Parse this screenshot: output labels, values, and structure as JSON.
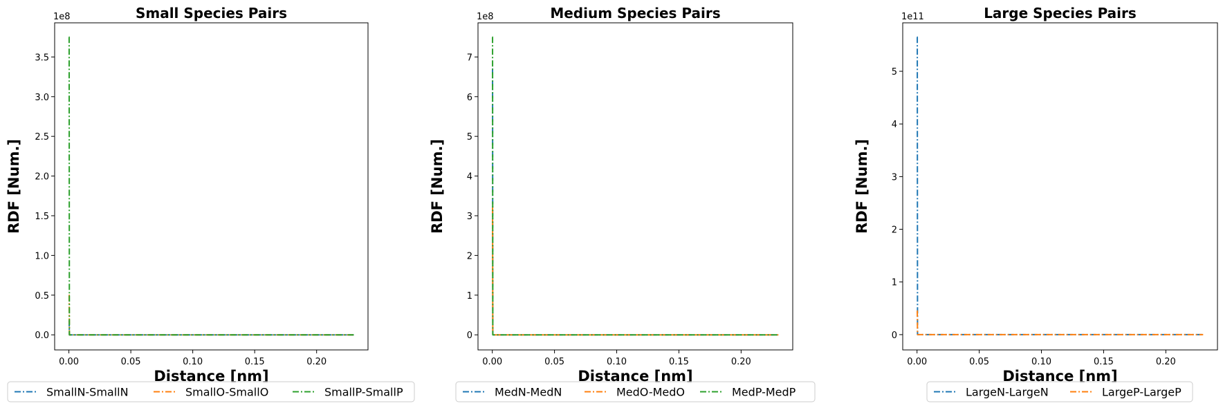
{
  "chart_data": [
    {
      "type": "line",
      "title": "Small Species Pairs",
      "xlabel": "Distance [nm]",
      "ylabel": "RDF [Num.]",
      "offset_text": "1e8",
      "xlim": [
        -0.0115,
        0.2415
      ],
      "ylim": [
        -0.19,
        3.93
      ],
      "xticks": [
        0.0,
        0.05,
        0.1,
        0.15,
        0.2
      ],
      "xtick_labels": [
        "0.00",
        "0.05",
        "0.10",
        "0.15",
        "0.20"
      ],
      "yticks": [
        0.0,
        0.5,
        1.0,
        1.5,
        2.0,
        2.5,
        3.0,
        3.5
      ],
      "ytick_labels": [
        "0.0",
        "0.5",
        "1.0",
        "1.5",
        "2.0",
        "2.5",
        "3.0",
        "3.5"
      ],
      "legend": "below",
      "series": [
        {
          "name": "SmallN-SmallN",
          "color": "#1f77b4",
          "x": [
            0.0,
            0.0002,
            0.0004,
            0.23
          ],
          "y": [
            0.18,
            0.18,
            0.0,
            0.0
          ]
        },
        {
          "name": "SmallO-SmallO",
          "color": "#ff7f0e",
          "x": [
            0.0,
            0.0002,
            0.0004,
            0.23
          ],
          "y": [
            0.5,
            0.5,
            0.0,
            0.0
          ]
        },
        {
          "name": "SmallP-SmallP",
          "color": "#2ca02c",
          "x": [
            0.0,
            0.0002,
            0.0004,
            0.23
          ],
          "y": [
            3.75,
            3.75,
            0.0,
            0.0
          ]
        }
      ]
    },
    {
      "type": "line",
      "title": "Medium Species Pairs",
      "xlabel": "Distance [nm]",
      "ylabel": "RDF [Num.]",
      "offset_text": "1e8",
      "xlim": [
        -0.0115,
        0.2415
      ],
      "ylim": [
        -0.38,
        7.86
      ],
      "xticks": [
        0.0,
        0.05,
        0.1,
        0.15,
        0.2
      ],
      "xtick_labels": [
        "0.00",
        "0.05",
        "0.10",
        "0.15",
        "0.20"
      ],
      "yticks": [
        0,
        1,
        2,
        3,
        4,
        5,
        6,
        7
      ],
      "ytick_labels": [
        "0",
        "1",
        "2",
        "3",
        "4",
        "5",
        "6",
        "7"
      ],
      "legend": "below",
      "series": [
        {
          "name": "MedN-MedN",
          "color": "#1f77b4",
          "x": [
            0.0,
            0.0002,
            0.0004,
            0.23
          ],
          "y": [
            6.7,
            6.7,
            0.0,
            0.0
          ]
        },
        {
          "name": "MedO-MedO",
          "color": "#ff7f0e",
          "x": [
            0.0,
            0.0002,
            0.0004,
            0.23
          ],
          "y": [
            3.2,
            3.2,
            0.0,
            0.0
          ]
        },
        {
          "name": "MedP-MedP",
          "color": "#2ca02c",
          "x": [
            0.0,
            0.0002,
            0.0004,
            0.23
          ],
          "y": [
            7.5,
            7.5,
            0.0,
            0.0
          ]
        }
      ]
    },
    {
      "type": "line",
      "title": "Large Species Pairs",
      "xlabel": "Distance [nm]",
      "ylabel": "RDF [Num.]",
      "offset_text": "1e11",
      "xlim": [
        -0.0115,
        0.2415
      ],
      "ylim": [
        -0.29,
        5.92
      ],
      "xticks": [
        0.0,
        0.05,
        0.1,
        0.15,
        0.2
      ],
      "xtick_labels": [
        "0.00",
        "0.05",
        "0.10",
        "0.15",
        "0.20"
      ],
      "yticks": [
        0,
        1,
        2,
        3,
        4,
        5
      ],
      "ytick_labels": [
        "0",
        "1",
        "2",
        "3",
        "4",
        "5"
      ],
      "legend": "below",
      "series": [
        {
          "name": "LargeN-LargeN",
          "color": "#1f77b4",
          "x": [
            0.0,
            0.0002,
            0.0004,
            0.23
          ],
          "y": [
            5.65,
            5.65,
            0.0,
            0.0
          ]
        },
        {
          "name": "LargeP-LargeP",
          "color": "#ff7f0e",
          "x": [
            0.0,
            0.0002,
            0.0004,
            0.23
          ],
          "y": [
            0.45,
            0.45,
            0.0,
            0.0
          ]
        }
      ]
    }
  ]
}
